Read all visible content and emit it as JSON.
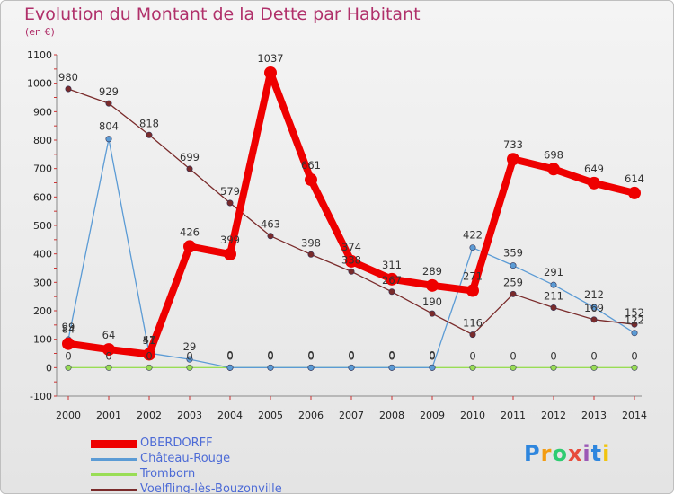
{
  "title": "Evolution du Montant de la Dette par Habitant",
  "subtitle": "(en €)",
  "logo": "Proxiti",
  "chart_data": {
    "type": "line",
    "x": [
      "2000",
      "2001",
      "2002",
      "2003",
      "2004",
      "2005",
      "2006",
      "2007",
      "2008",
      "2009",
      "2010",
      "2011",
      "2012",
      "2013",
      "2014"
    ],
    "ylim": [
      -100,
      1100
    ],
    "yticks": [
      -100,
      0,
      100,
      200,
      300,
      400,
      500,
      600,
      700,
      800,
      900,
      1000,
      1100
    ],
    "grid": false,
    "legend_position": "bottom-left",
    "series": [
      {
        "name": "OBERDORFF",
        "color": "#ee0000",
        "width": 8,
        "values": [
          84,
          64,
          47,
          426,
          399,
          1037,
          661,
          374,
          311,
          289,
          271,
          733,
          698,
          649,
          614
        ]
      },
      {
        "name": "Château-Rouge",
        "color": "#5b9bd5",
        "width": 1.3,
        "values": [
          99,
          804,
          51,
          29,
          0,
          0,
          0,
          0,
          0,
          0,
          422,
          359,
          291,
          212,
          122
        ]
      },
      {
        "name": "Tromborn",
        "color": "#99dd55",
        "width": 1.3,
        "values": [
          0,
          0,
          0,
          0,
          0,
          0,
          0,
          0,
          0,
          0,
          0,
          0,
          0,
          0,
          0
        ]
      },
      {
        "name": "Voelfling-lès-Bouzonville",
        "color": "#7a2b2b",
        "width": 1.3,
        "values": [
          980,
          929,
          818,
          699,
          579,
          463,
          398,
          338,
          267,
          190,
          116,
          259,
          211,
          169,
          152
        ]
      }
    ]
  }
}
